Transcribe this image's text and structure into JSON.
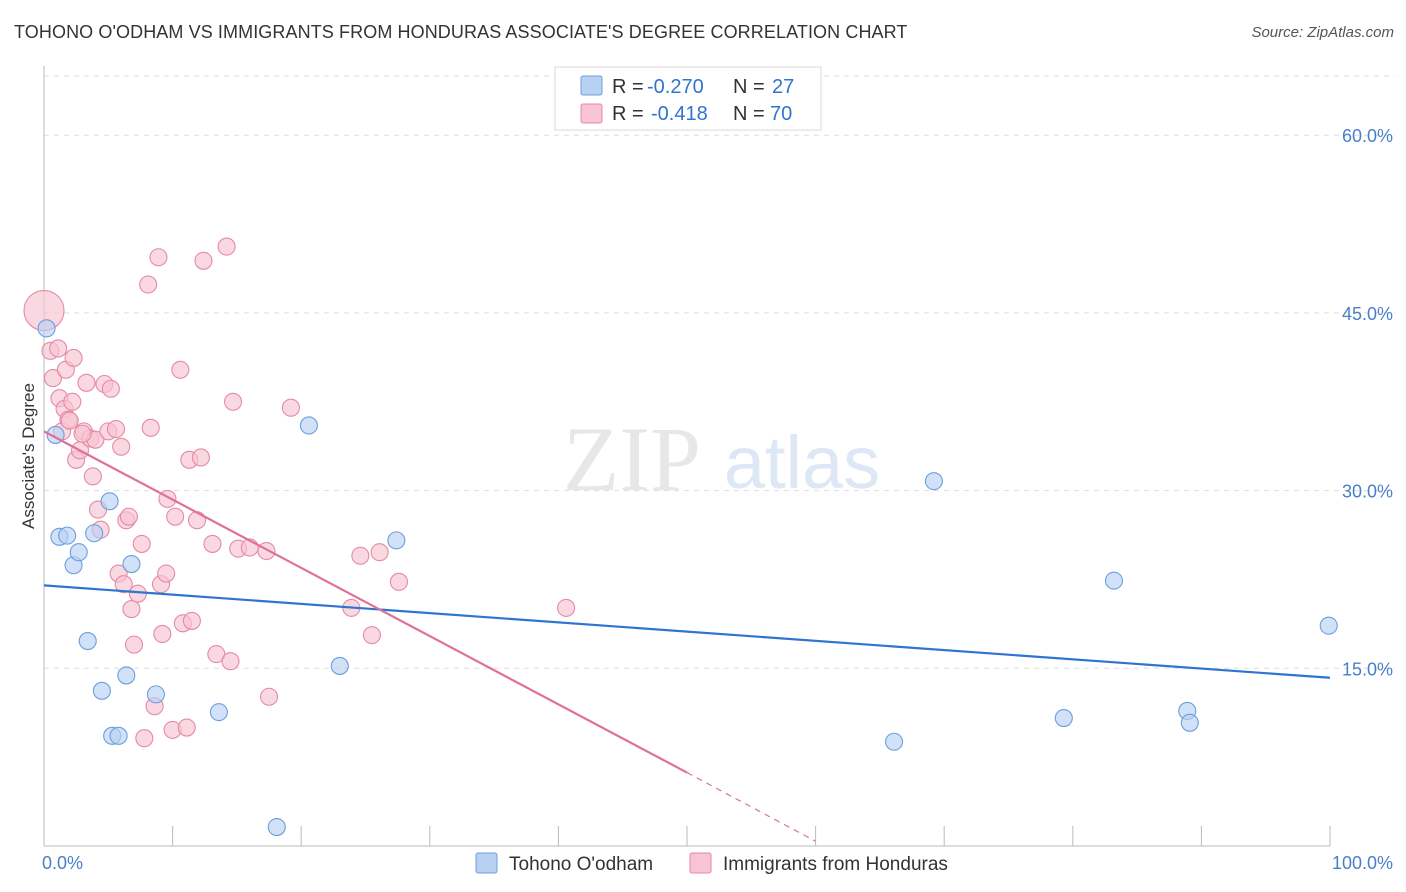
{
  "header": {
    "title": "TOHONO O'ODHAM VS IMMIGRANTS FROM HONDURAS ASSOCIATE'S DEGREE CORRELATION CHART",
    "source": "Source: ZipAtlas.com"
  },
  "watermark": {
    "zip": "ZIP",
    "atlas": "atlas"
  },
  "colors": {
    "blue_fill": "#b8d1f3",
    "blue_stroke": "#6c9fdc",
    "blue_line": "#2f74d0",
    "pink_fill": "#f8c3d3",
    "pink_stroke": "#e58aa6",
    "pink_line": "#e0709a",
    "value_text": "#2f74d0",
    "grid": "#dddddd"
  },
  "legend": {
    "rows": [
      {
        "r_label": "R =",
        "r_value": "-0.270",
        "n_label": "N =",
        "n_value": "27"
      },
      {
        "r_label": "R =",
        "r_value": "-0.418",
        "n_label": "N =",
        "n_value": "70"
      }
    ]
  },
  "chart_data": {
    "type": "scatter",
    "title": "TOHONO O'ODHAM VS IMMIGRANTS FROM HONDURAS ASSOCIATE'S DEGREE CORRELATION CHART",
    "xlabel": "",
    "ylabel": "Associate's Degree",
    "xlim": [
      0,
      100
    ],
    "ylim": [
      0,
      65
    ],
    "x_tick_labels": [
      "0.0%",
      "100.0%"
    ],
    "y_ticks": [
      15,
      30,
      45,
      60
    ],
    "y_tick_labels": [
      "15.0%",
      "30.0%",
      "45.0%",
      "60.0%"
    ],
    "grid": true,
    "legend_position": "top-center",
    "series": [
      {
        "name": "Tohono O'odham",
        "r": -0.27,
        "n": 27,
        "trend": {
          "x": [
            0,
            100
          ],
          "y": [
            22.0,
            14.2
          ]
        },
        "points": [
          [
            0.2,
            43.7
          ],
          [
            0.9,
            34.7
          ],
          [
            1.2,
            26.1
          ],
          [
            1.8,
            26.2
          ],
          [
            2.3,
            23.7
          ],
          [
            2.7,
            24.8
          ],
          [
            3.4,
            17.3
          ],
          [
            3.9,
            26.4
          ],
          [
            4.5,
            13.1
          ],
          [
            5.1,
            29.1
          ],
          [
            5.3,
            9.3
          ],
          [
            5.8,
            9.3
          ],
          [
            6.4,
            14.4
          ],
          [
            6.8,
            23.8
          ],
          [
            8.7,
            12.8
          ],
          [
            13.6,
            11.3
          ],
          [
            18.1,
            1.6
          ],
          [
            20.6,
            35.5
          ],
          [
            23.0,
            15.2
          ],
          [
            27.4,
            25.8
          ],
          [
            69.2,
            30.8
          ],
          [
            66.1,
            8.8
          ],
          [
            79.3,
            10.8
          ],
          [
            83.2,
            22.4
          ],
          [
            88.9,
            11.4
          ],
          [
            89.1,
            10.4
          ],
          [
            99.9,
            18.6
          ]
        ]
      },
      {
        "name": "Immigrants from Honduras",
        "r": -0.418,
        "n": 70,
        "trend": {
          "x": [
            0,
            50
          ],
          "y": [
            35.0,
            6.2
          ]
        },
        "trend_dashed": {
          "x": [
            50,
            60
          ],
          "y": [
            6.2,
            0.4
          ]
        },
        "points": [
          [
            0.0,
            45.2
          ],
          [
            0.5,
            41.8
          ],
          [
            0.7,
            39.5
          ],
          [
            1.1,
            42.0
          ],
          [
            1.2,
            37.8
          ],
          [
            1.4,
            35.0
          ],
          [
            1.6,
            36.9
          ],
          [
            1.7,
            40.2
          ],
          [
            1.9,
            36.0
          ],
          [
            2.0,
            35.9
          ],
          [
            2.2,
            37.5
          ],
          [
            2.3,
            41.2
          ],
          [
            2.5,
            32.6
          ],
          [
            2.8,
            33.4
          ],
          [
            3.1,
            35.0
          ],
          [
            3.3,
            39.1
          ],
          [
            3.6,
            34.4
          ],
          [
            3.8,
            31.2
          ],
          [
            4.0,
            34.3
          ],
          [
            4.2,
            28.4
          ],
          [
            4.4,
            26.7
          ],
          [
            4.7,
            39.0
          ],
          [
            5.0,
            35.0
          ],
          [
            5.2,
            38.6
          ],
          [
            5.6,
            35.2
          ],
          [
            5.8,
            23.0
          ],
          [
            6.0,
            33.7
          ],
          [
            6.2,
            22.1
          ],
          [
            6.4,
            27.5
          ],
          [
            6.6,
            27.8
          ],
          [
            6.8,
            20.0
          ],
          [
            7.0,
            17.0
          ],
          [
            7.3,
            21.3
          ],
          [
            7.6,
            25.5
          ],
          [
            7.8,
            9.1
          ],
          [
            8.1,
            47.4
          ],
          [
            8.3,
            35.3
          ],
          [
            8.6,
            11.8
          ],
          [
            8.9,
            49.7
          ],
          [
            9.1,
            22.1
          ],
          [
            9.2,
            17.9
          ],
          [
            9.5,
            23.0
          ],
          [
            9.6,
            29.3
          ],
          [
            10.0,
            9.8
          ],
          [
            10.2,
            27.8
          ],
          [
            10.6,
            40.2
          ],
          [
            10.8,
            18.8
          ],
          [
            11.1,
            10.0
          ],
          [
            11.3,
            32.6
          ],
          [
            11.5,
            19.0
          ],
          [
            11.9,
            27.5
          ],
          [
            12.2,
            32.8
          ],
          [
            12.4,
            49.4
          ],
          [
            13.1,
            25.5
          ],
          [
            13.4,
            16.2
          ],
          [
            14.2,
            50.6
          ],
          [
            14.5,
            15.6
          ],
          [
            14.7,
            37.5
          ],
          [
            15.1,
            25.1
          ],
          [
            16.0,
            25.2
          ],
          [
            17.3,
            24.9
          ],
          [
            17.5,
            12.6
          ],
          [
            19.2,
            37.0
          ],
          [
            23.9,
            20.1
          ],
          [
            24.6,
            24.5
          ],
          [
            25.5,
            17.8
          ],
          [
            26.1,
            24.8
          ],
          [
            27.6,
            22.3
          ],
          [
            40.6,
            20.1
          ],
          [
            3.0,
            34.8
          ]
        ]
      }
    ]
  },
  "bottom_legend": {
    "items": [
      {
        "label": "Tohono O'odham"
      },
      {
        "label": "Immigrants from Honduras"
      }
    ]
  }
}
